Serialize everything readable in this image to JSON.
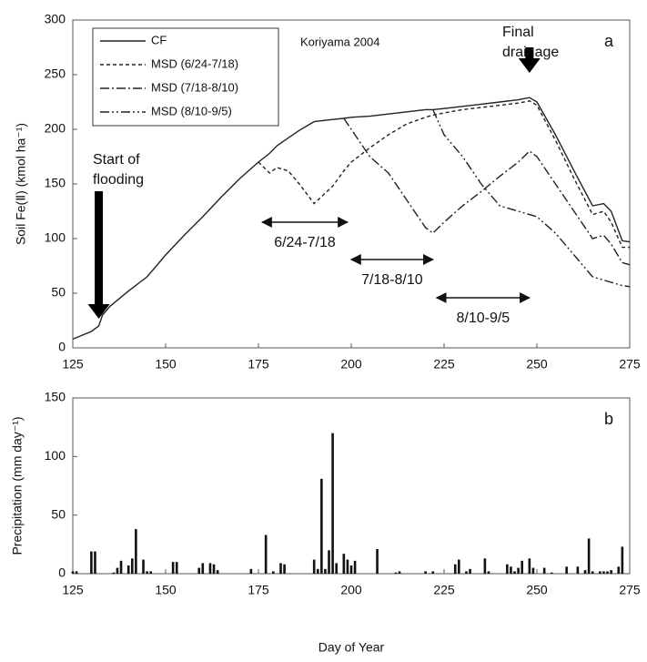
{
  "chart_data": [
    {
      "type": "line",
      "ylabel": "Soil Fe(Ⅱ) (kmol ha⁻¹)",
      "site_label": "Koriyama 2004",
      "panel_label": "a",
      "x": [
        125,
        130,
        132,
        133,
        135,
        140,
        145,
        150,
        155,
        160,
        165,
        170,
        175,
        178,
        180,
        183,
        186,
        190,
        195,
        198,
        200,
        205,
        210,
        215,
        220,
        222,
        225,
        230,
        235,
        240,
        245,
        248,
        250,
        255,
        260,
        265,
        268,
        270,
        273,
        275
      ],
      "series": [
        {
          "name": "CF",
          "color": "#222222",
          "dash": "none",
          "values": [
            8,
            15,
            20,
            30,
            38,
            52,
            65,
            85,
            103,
            120,
            138,
            155,
            170,
            178,
            185,
            192,
            199,
            207,
            209,
            210,
            211,
            212,
            214,
            216,
            218,
            218,
            219,
            221,
            223,
            225,
            227,
            229,
            225,
            195,
            162,
            130,
            132,
            125,
            98,
            97
          ]
        },
        {
          "name": "MSD (6/24-7/18)",
          "color": "#222222",
          "dash": "4,3",
          "values": [
            null,
            null,
            null,
            null,
            null,
            null,
            null,
            null,
            null,
            null,
            null,
            null,
            170,
            160,
            165,
            162,
            150,
            132,
            148,
            162,
            170,
            183,
            195,
            205,
            211,
            213,
            215,
            218,
            220,
            222,
            224,
            226,
            222,
            190,
            155,
            122,
            125,
            115,
            92,
            92
          ]
        },
        {
          "name": "MSD (7/18-8/10)",
          "color": "#222222",
          "dash": "10,3,2,3",
          "values": [
            null,
            null,
            null,
            null,
            null,
            null,
            null,
            null,
            null,
            null,
            null,
            null,
            null,
            null,
            null,
            null,
            null,
            null,
            null,
            210,
            200,
            175,
            160,
            135,
            110,
            105,
            115,
            130,
            143,
            157,
            170,
            180,
            175,
            150,
            125,
            100,
            103,
            95,
            78,
            76
          ]
        },
        {
          "name": "MSD (8/10-9/5)",
          "color": "#222222",
          "dash": "10,3,2,3,2,3",
          "values": [
            null,
            null,
            null,
            null,
            null,
            null,
            null,
            null,
            null,
            null,
            null,
            null,
            null,
            null,
            null,
            null,
            null,
            null,
            null,
            null,
            null,
            null,
            null,
            null,
            null,
            218,
            195,
            175,
            150,
            130,
            125,
            122,
            120,
            105,
            85,
            65,
            62,
            60,
            57,
            56
          ]
        }
      ],
      "events": [
        {
          "lines": [
            "Start of",
            "flooding"
          ],
          "x": 132
        },
        {
          "lines": [
            "Final",
            "drainage"
          ],
          "x": 248
        }
      ],
      "periods": [
        {
          "label": "6/24-7/18",
          "x": [
            176,
            199
          ]
        },
        {
          "label": "7/18-8/10",
          "x": [
            200,
            222
          ]
        },
        {
          "label": "8/10-9/5",
          "x": [
            223,
            248
          ]
        }
      ],
      "xlim": [
        125,
        275
      ],
      "xticks": [
        125,
        150,
        175,
        200,
        225,
        250,
        275
      ],
      "ylim": [
        0,
        300
      ],
      "yticks": [
        0,
        50,
        100,
        150,
        200,
        250,
        300
      ]
    },
    {
      "type": "bar",
      "ylabel": "Precipitation (mm day⁻¹)",
      "xlabel": "Day of Year",
      "panel_label": "b",
      "color": "#111111",
      "x": [
        125,
        126,
        130,
        131,
        136,
        137,
        138,
        140,
        141,
        142,
        144,
        145,
        146,
        152,
        153,
        159,
        160,
        162,
        163,
        164,
        173,
        177,
        179,
        181,
        182,
        190,
        191,
        192,
        193,
        194,
        195,
        196,
        198,
        199,
        200,
        201,
        207,
        212,
        213,
        220,
        222,
        228,
        229,
        231,
        232,
        236,
        237,
        242,
        243,
        244,
        245,
        246,
        248,
        249,
        252,
        254,
        258,
        261,
        263,
        264,
        265,
        267,
        268,
        269,
        270,
        272,
        273
      ],
      "values": [
        2,
        2,
        19,
        19,
        1,
        5,
        11,
        7,
        13,
        38,
        12,
        2,
        2,
        10,
        10,
        5,
        9,
        9,
        8,
        3,
        4,
        33,
        2,
        9,
        8,
        12,
        4,
        81,
        4,
        20,
        120,
        9,
        17,
        12,
        7,
        11,
        21,
        1,
        2,
        2,
        2,
        8,
        12,
        2,
        4,
        13,
        2,
        8,
        6,
        2,
        5,
        11,
        13,
        5,
        5,
        1,
        6,
        6,
        3,
        30,
        2,
        2,
        2,
        2,
        3,
        6,
        23
      ],
      "xlim": [
        125,
        275
      ],
      "xticks": [
        125,
        150,
        175,
        200,
        225,
        250,
        275
      ],
      "ylim": [
        0,
        150
      ],
      "yticks": [
        0,
        50,
        100,
        150
      ]
    }
  ]
}
